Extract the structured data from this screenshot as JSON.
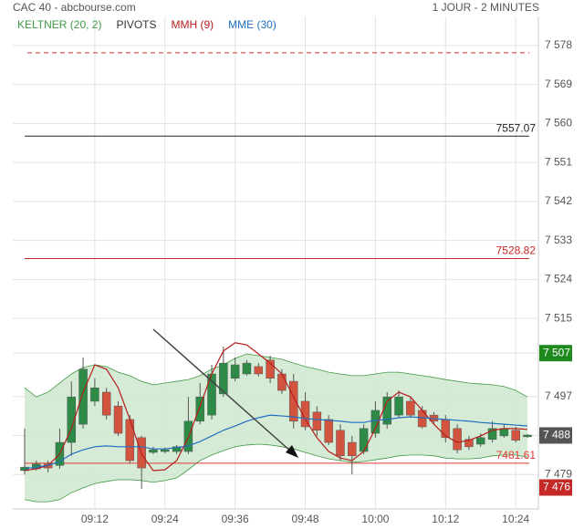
{
  "header": {
    "title": "CAC 40 - abcbourse.com",
    "period": "1 JOUR - 2 MINUTES"
  },
  "chart_data": {
    "type": "candlestick",
    "categories": [
      null,
      null,
      null,
      null,
      null,
      null,
      "09:12",
      null,
      null,
      null,
      null,
      null,
      "09:24",
      null,
      null,
      null,
      null,
      null,
      "09:36",
      null,
      null,
      null,
      null,
      null,
      "09:48",
      null,
      null,
      null,
      null,
      null,
      "10:00",
      null,
      null,
      null,
      null,
      null,
      "10:12",
      null,
      null,
      null,
      null,
      null,
      "10:24",
      null
    ],
    "open": [
      7479.9,
      7480.3,
      7481.4,
      7481.1,
      7486.4,
      7490.6,
      7495.9,
      7498.0,
      7494.8,
      7491.7,
      7487.5,
      7484.1,
      7484.3,
      7484.3,
      7484.3,
      7491.3,
      7492.7,
      7497.6,
      7501.2,
      7502.2,
      7503.9,
      7505.4,
      7502.2,
      7500.5,
      7495.9,
      7493.4,
      7491.7,
      7489.2,
      7486.4,
      7484.3,
      7488.5,
      7490.6,
      7492.7,
      7495.9,
      7493.8,
      7492.7,
      7491.7,
      7489.6,
      7487.1,
      7486.0,
      7487.1,
      7487.9,
      7489.2,
      7487.7
    ],
    "high": [
      7489.6,
      7482.2,
      7482.2,
      7489.6,
      7500.5,
      7506.0,
      7501.2,
      7499.0,
      7495.9,
      7492.7,
      7487.9,
      7485.4,
      7485.2,
      7485.8,
      7496.9,
      7500.1,
      7504.3,
      7508.5,
      7506.0,
      7505.4,
      7504.7,
      7506.4,
      7503.3,
      7502.2,
      7498.0,
      7494.8,
      7492.7,
      7490.6,
      7487.9,
      7490.6,
      7495.9,
      7498.0,
      7498.4,
      7496.9,
      7494.8,
      7493.4,
      7492.7,
      7490.6,
      7487.9,
      7488.5,
      7491.3,
      7490.6,
      7490.0,
      7488.3
    ],
    "low": [
      7479.0,
      7479.9,
      7479.5,
      7480.3,
      7483.3,
      7489.6,
      7494.8,
      7491.7,
      7487.9,
      7481.6,
      7475.7,
      7483.7,
      7483.9,
      7483.7,
      7483.7,
      7490.6,
      7491.7,
      7496.9,
      7500.5,
      7501.8,
      7501.6,
      7500.1,
      7497.6,
      7489.6,
      7489.2,
      7487.9,
      7485.8,
      7482.2,
      7479.0,
      7483.7,
      7487.5,
      7489.6,
      7492.1,
      7492.1,
      7489.6,
      7490.6,
      7486.4,
      7483.9,
      7484.7,
      7485.4,
      7486.4,
      7487.5,
      7486.4,
      7487.5
    ],
    "close": [
      7480.7,
      7481.4,
      7480.5,
      7486.4,
      7496.9,
      7503.3,
      7499.0,
      7492.7,
      7488.5,
      7482.2,
      7480.5,
      7484.7,
      7484.7,
      7485.4,
      7491.3,
      7496.9,
      7502.2,
      7504.7,
      7504.3,
      7504.7,
      7502.2,
      7501.2,
      7498.4,
      7491.3,
      7490.0,
      7489.2,
      7486.4,
      7483.3,
      7483.3,
      7489.6,
      7493.8,
      7496.9,
      7496.9,
      7492.7,
      7490.0,
      7491.3,
      7487.5,
      7484.7,
      7485.4,
      7487.5,
      7489.6,
      7489.6,
      7486.9,
      7488.1
    ],
    "up_color": "#2e8b47",
    "down_color": "#d2543f",
    "keltner": {
      "name": "KELTNER (20, 2)",
      "color": "#3f9a45",
      "fill": "#cfe7cf",
      "upper": [
        7499.0,
        7496.9,
        7498.0,
        7500.1,
        7502.2,
        7503.7,
        7504.3,
        7503.9,
        7502.6,
        7501.8,
        7500.5,
        7499.7,
        7500.1,
        7500.5,
        7500.9,
        7501.8,
        7503.3,
        7504.3,
        7505.8,
        7506.8,
        7506.4,
        7506.0,
        7505.6,
        7504.7,
        7503.9,
        7503.3,
        7502.6,
        7502.2,
        7501.8,
        7501.8,
        7502.2,
        7502.6,
        7502.6,
        7502.2,
        7501.8,
        7501.4,
        7500.9,
        7500.5,
        7500.1,
        7499.9,
        7499.7,
        7499.3,
        7498.4,
        7496.9
      ],
      "lower": [
        7473.2,
        7472.7,
        7472.7,
        7473.2,
        7474.8,
        7475.9,
        7476.9,
        7477.4,
        7477.8,
        7477.8,
        7477.6,
        7477.2,
        7477.6,
        7478.2,
        7480.1,
        7482.2,
        7483.5,
        7484.5,
        7485.4,
        7485.8,
        7486.0,
        7485.8,
        7485.4,
        7484.9,
        7484.1,
        7483.3,
        7482.6,
        7482.2,
        7481.8,
        7482.0,
        7482.4,
        7482.8,
        7483.3,
        7483.5,
        7483.5,
        7483.3,
        7482.8,
        7482.6,
        7482.6,
        7482.8,
        7483.3,
        7483.5,
        7483.5,
        7483.0
      ]
    },
    "pivots": {
      "name": "PIVOTS",
      "color": "#333333",
      "levels": [
        {
          "value": 7576.3,
          "color": "#d32f2f",
          "dashed": true
        },
        {
          "value": 7557.07,
          "label": "7557.07",
          "color": "#222222"
        },
        {
          "value": 7528.82,
          "label": "7528.82",
          "color": "#c62828"
        },
        {
          "value": 7481.61,
          "label": "7481.61",
          "color": "#e53935"
        }
      ]
    },
    "series": [
      {
        "name": "MMH (9)",
        "color": "#b71c1c",
        "values": [
          7479.9,
          7480.3,
          7481.1,
          7483.7,
          7489.6,
          7498.0,
          7504.3,
          7503.3,
          7499.0,
          7491.7,
          7483.7,
          7479.9,
          7480.1,
          7482.2,
          7487.5,
          7494.8,
          7502.2,
          7507.5,
          7509.4,
          7508.9,
          7506.8,
          7504.7,
          7502.2,
          7496.9,
          7491.7,
          7487.5,
          7484.3,
          7482.8,
          7482.2,
          7484.3,
          7489.6,
          7495.9,
          7498.0,
          7496.9,
          7493.8,
          7490.6,
          7487.9,
          7486.4,
          7486.9,
          7487.9,
          7489.2,
          7489.6,
          7489.6,
          7489.4
        ]
      },
      {
        "name": "MME (30)",
        "color": "#1f6fc0",
        "values": [
          7480.3,
          7480.7,
          7481.1,
          7482.0,
          7483.7,
          7484.7,
          7485.4,
          7485.6,
          7485.4,
          7485.4,
          7485.4,
          7484.9,
          7484.9,
          7485.2,
          7485.6,
          7486.6,
          7487.9,
          7489.2,
          7490.2,
          7491.3,
          7492.1,
          7492.7,
          7492.5,
          7492.3,
          7491.9,
          7491.7,
          7491.5,
          7491.3,
          7491.0,
          7491.0,
          7491.5,
          7491.7,
          7492.1,
          7492.3,
          7492.1,
          7491.9,
          7491.7,
          7491.5,
          7491.3,
          7491.0,
          7490.8,
          7490.6,
          7490.4,
          7490.2
        ]
      }
    ],
    "markers": [
      {
        "value": 7507,
        "label": "7 507",
        "color": "#1e8a1e"
      },
      {
        "value": 7488,
        "label": "7 488",
        "color": "#555555"
      },
      {
        "value": 7476,
        "label": "7 476",
        "color": "#c62828"
      }
    ],
    "ylim": [
      7471.05,
      7584.7
    ],
    "yticks": [
      {
        "value": 7578,
        "label": "7 578"
      },
      {
        "value": 7569,
        "label": "7 569"
      },
      {
        "value": 7560,
        "label": "7 560"
      },
      {
        "value": 7551,
        "label": "7 551"
      },
      {
        "value": 7542,
        "label": "7 542"
      },
      {
        "value": 7533,
        "label": "7 533"
      },
      {
        "value": 7524,
        "label": "7 524"
      },
      {
        "value": 7515,
        "label": "7 515"
      },
      {
        "value": 7507,
        "label": "7 507"
      },
      {
        "value": 7497,
        "label": "7 497"
      },
      {
        "value": 7488,
        "label": "7 488"
      },
      {
        "value": 7479,
        "label": "7 479"
      }
    ],
    "grid": true
  }
}
